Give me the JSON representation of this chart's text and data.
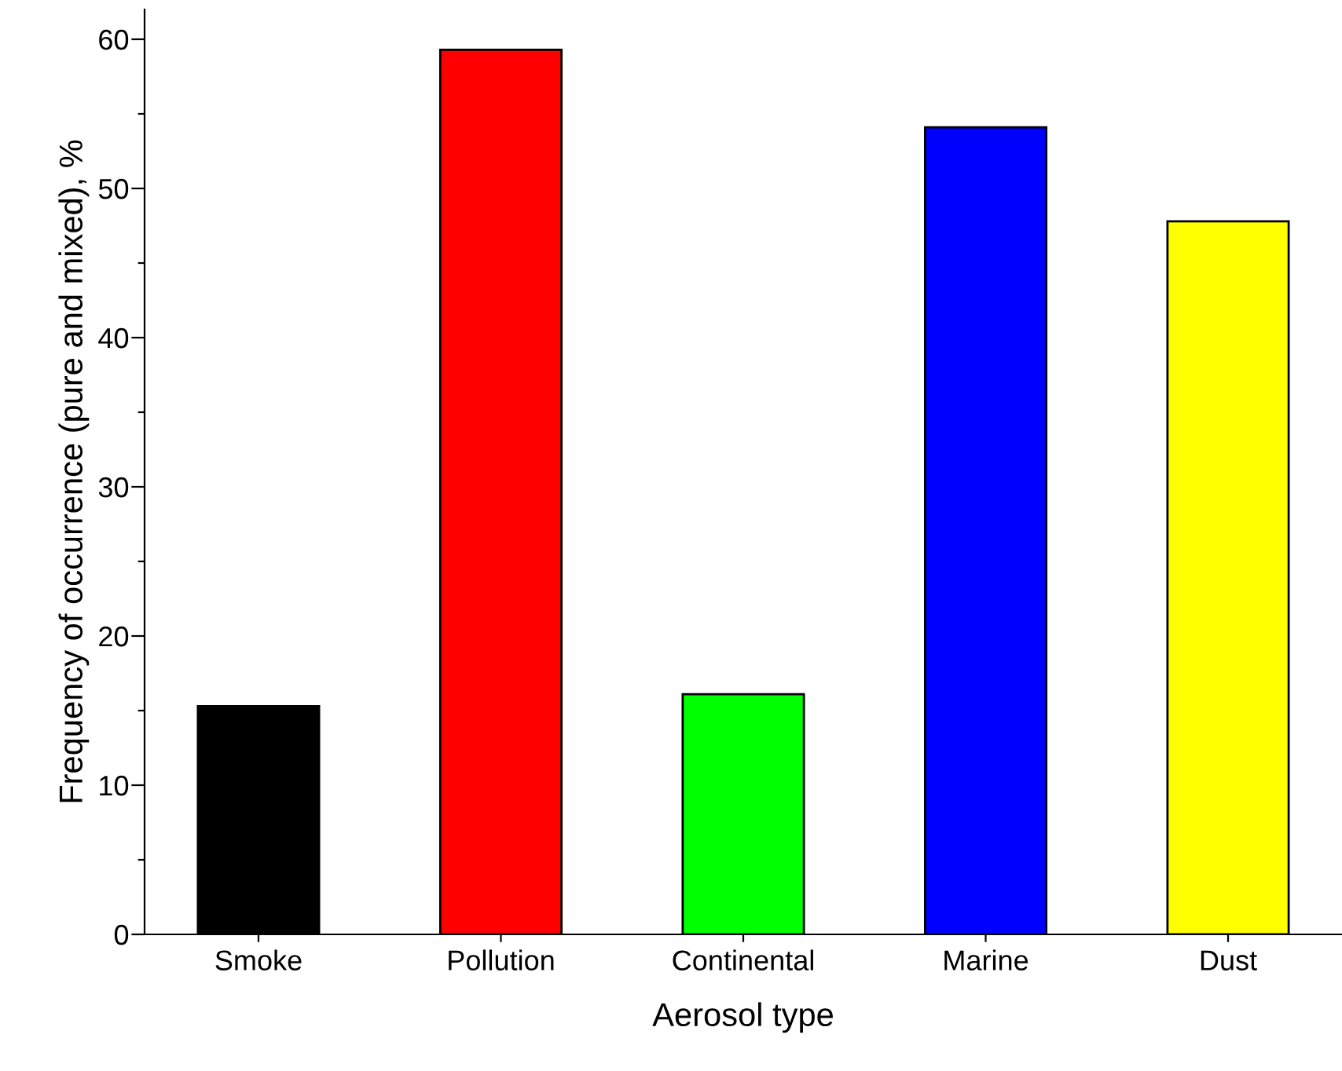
{
  "chart_data": {
    "type": "bar",
    "xlabel": "Aerosol type",
    "ylabel": "Frequency of occurrence (pure and mixed), %",
    "categories": [
      "Smoke",
      "Pollution",
      "Continental",
      "Marine",
      "Dust"
    ],
    "values": [
      15.3,
      59.3,
      16.1,
      54.1,
      47.8
    ],
    "colors": [
      "#000000",
      "#ff0000",
      "#00ff00",
      "#0000ff",
      "#ffff00"
    ],
    "ylim": [
      0,
      62
    ],
    "yticks": [
      0,
      {
        "value": 5,
        "label": null
      },
      10,
      {
        "value": 15,
        "label": null
      },
      20,
      {
        "value": 25,
        "label": null
      },
      30,
      {
        "value": 35,
        "label": null
      },
      40,
      {
        "value": 45,
        "label": null
      },
      50,
      {
        "value": 55,
        "label": null
      },
      60
    ],
    "grid": false
  }
}
